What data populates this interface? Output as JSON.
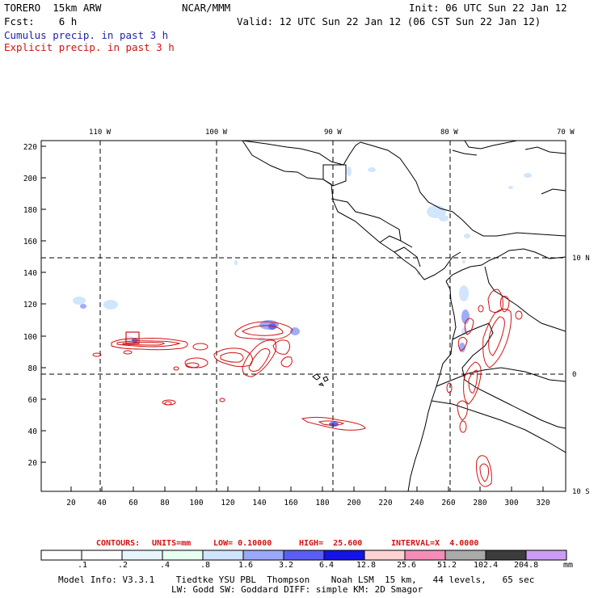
{
  "header": {
    "model": "TORERO  15km ARW",
    "org": "NCAR/MMM",
    "init": "Init: 06 UTC Sun 22 Jan 12",
    "fcst": "Fcst:    6 h",
    "valid": "Valid: 12 UTC Sun 22 Jan 12 (06 CST Sun 22 Jan 12)"
  },
  "legend": {
    "cumulus": "Cumulus precip. in past 3 h",
    "explicit": "Explicit precip. in past 3 h",
    "cumulus_color": "#1f1fb0",
    "explicit_color": "#d21212"
  },
  "map": {
    "top_lon_labels": [
      "110 W",
      "100 W",
      "90 W",
      "80 W",
      "70 W"
    ],
    "right_lat_labels": [
      "10 N",
      "0",
      "10 S"
    ],
    "y_ticks": [
      "220",
      "200",
      "180",
      "160",
      "140",
      "120",
      "100",
      "80",
      "60",
      "40",
      "20"
    ],
    "x_ticks": [
      "20",
      "40",
      "60",
      "80",
      "100",
      "120",
      "140",
      "160",
      "180",
      "200",
      "220",
      "240",
      "260",
      "280",
      "300",
      "320"
    ]
  },
  "contours": {
    "label": "CONTOURS:",
    "units": "UNITS=mm",
    "low": "LOW= 0.10000",
    "high": "HIGH=  25.600",
    "interval": "INTERVAL=X  4.0000"
  },
  "colorbar": {
    "labels": [
      ".1",
      ".2",
      ".4",
      ".8",
      "1.6",
      "3.2",
      "6.4",
      "12.8",
      "25.6",
      "51.2",
      "102.4",
      "204.8",
      "mm"
    ],
    "colors": [
      "#ffffff",
      "#ffffff",
      "#e8f4fc",
      "#e6fff0",
      "#cfe4fc",
      "#9aa8f8",
      "#5a5ef2",
      "#1414e6",
      "#fcd2d2",
      "#f58cb8",
      "#aaaaaa",
      "#3c3c3c",
      "#cc9cf4"
    ]
  },
  "model_info": {
    "line1": "Model Info: V3.3.1    Tiedtke YSU PBL  Thompson    Noah LSM  15 km,   44 levels,   65 sec",
    "line2": "LW: Godd SW: Goddard DIFF: simple KM: 2D Smagor"
  }
}
